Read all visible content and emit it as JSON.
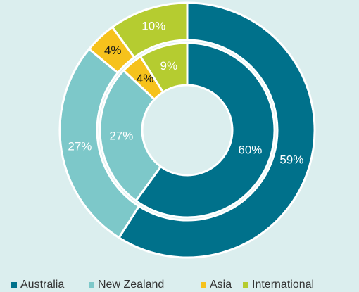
{
  "chart_data": {
    "type": "donut",
    "categories": [
      "Australia",
      "New Zealand",
      "Asia",
      "International"
    ],
    "colors": [
      "#00718b",
      "#7dc8c9",
      "#f6c21c",
      "#b5cc30"
    ],
    "label_colors": [
      "#ffffff",
      "#ffffff",
      "#1a1a1a",
      "#ffffff"
    ],
    "series": [
      {
        "values": [
          59,
          27,
          4,
          10
        ],
        "value_labels": [
          "59%",
          "27%",
          "4%",
          "10%"
        ]
      },
      {
        "values": [
          60,
          27,
          4,
          9
        ],
        "value_labels": [
          "60%",
          "27%",
          "4%",
          "9%"
        ]
      }
    ],
    "legend": "bottom"
  }
}
